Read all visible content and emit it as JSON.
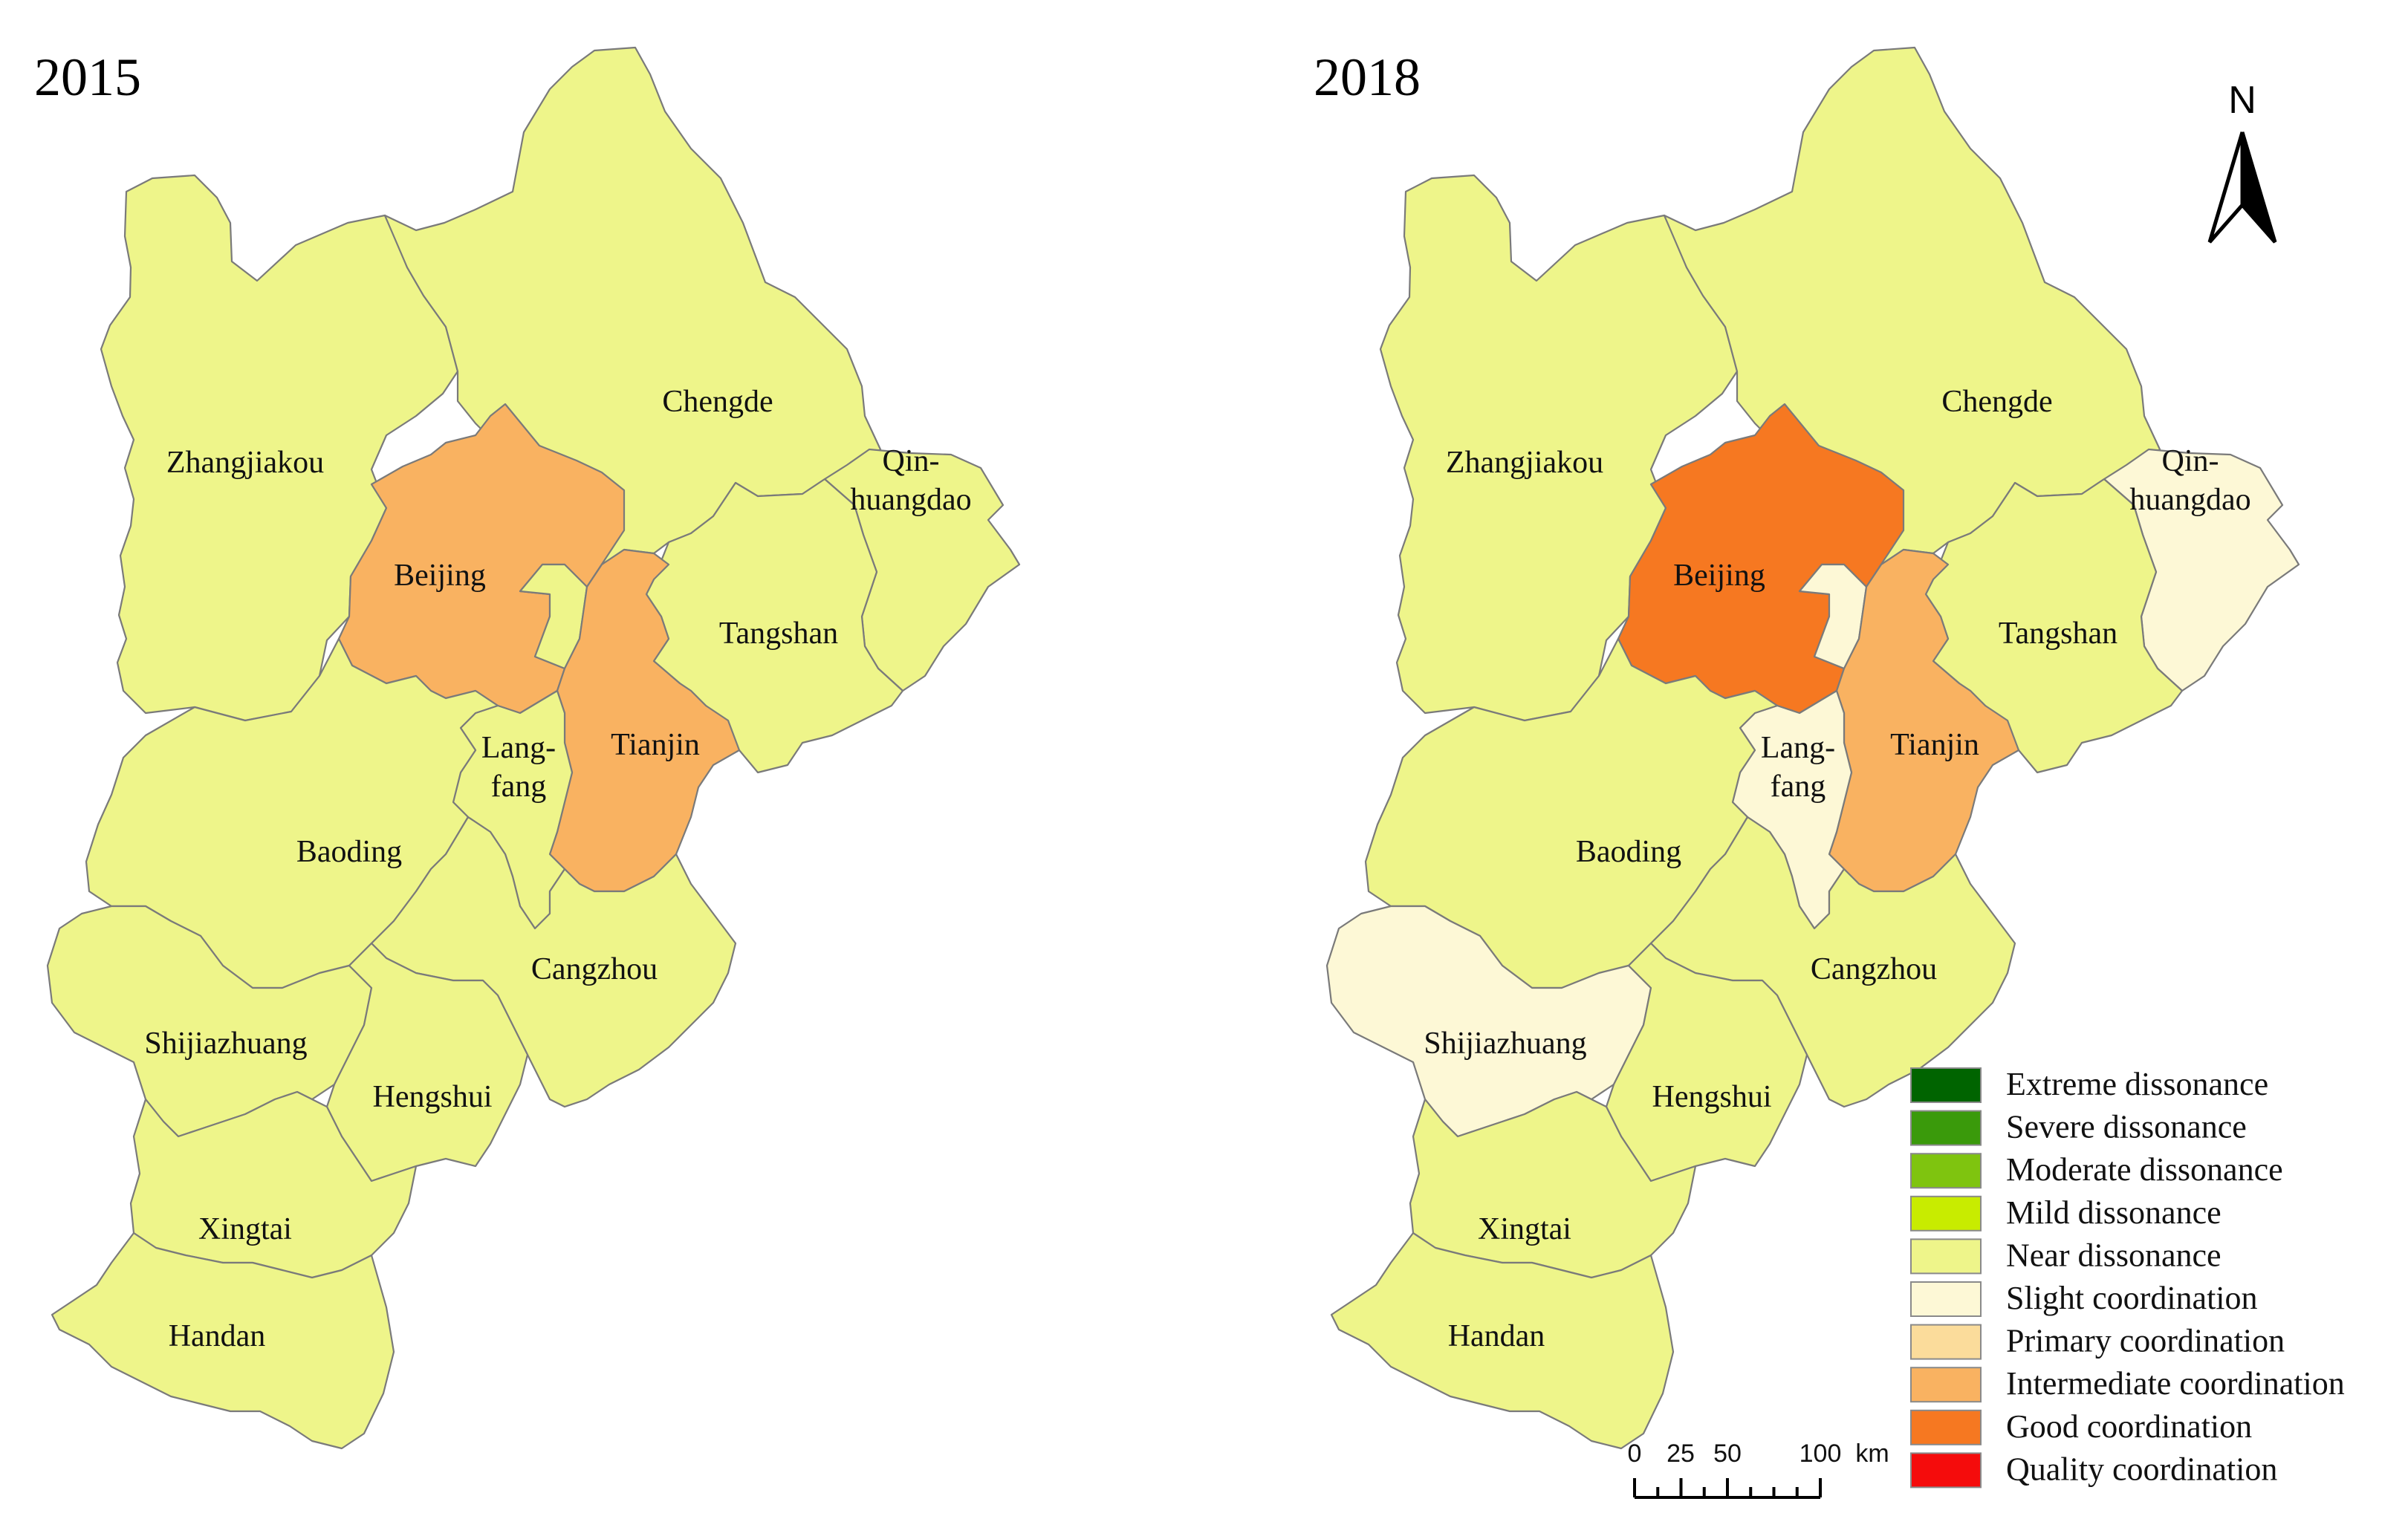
{
  "maps": [
    {
      "year": "2015",
      "regions": [
        {
          "id": "zhangjiakou",
          "label_lines": [
            "Zhangjiakou"
          ],
          "level": "Near dissonance"
        },
        {
          "id": "chengde",
          "label_lines": [
            "Chengde"
          ],
          "level": "Near dissonance"
        },
        {
          "id": "beijing",
          "label_lines": [
            "Beijing"
          ],
          "level": "Intermediate coordination"
        },
        {
          "id": "qinhuangdao",
          "label_lines": [
            "Qin-",
            "huangdao"
          ],
          "level": "Near dissonance"
        },
        {
          "id": "tangshan",
          "label_lines": [
            "Tangshan"
          ],
          "level": "Near dissonance"
        },
        {
          "id": "tianjin",
          "label_lines": [
            "Tianjin"
          ],
          "level": "Intermediate coordination"
        },
        {
          "id": "langfang",
          "label_lines": [
            "Lang-",
            "fang"
          ],
          "level": "Near dissonance"
        },
        {
          "id": "baoding",
          "label_lines": [
            "Baoding"
          ],
          "level": "Near dissonance"
        },
        {
          "id": "cangzhou",
          "label_lines": [
            "Cangzhou"
          ],
          "level": "Near dissonance"
        },
        {
          "id": "shijiazhuang",
          "label_lines": [
            "Shijiazhuang"
          ],
          "level": "Near dissonance"
        },
        {
          "id": "hengshui",
          "label_lines": [
            "Hengshui"
          ],
          "level": "Near dissonance"
        },
        {
          "id": "xingtai",
          "label_lines": [
            "Xingtai"
          ],
          "level": "Near dissonance"
        },
        {
          "id": "handan",
          "label_lines": [
            "Handan"
          ],
          "level": "Near dissonance"
        }
      ]
    },
    {
      "year": "2018",
      "regions": [
        {
          "id": "zhangjiakou",
          "label_lines": [
            "Zhangjiakou"
          ],
          "level": "Near dissonance"
        },
        {
          "id": "chengde",
          "label_lines": [
            "Chengde"
          ],
          "level": "Near dissonance"
        },
        {
          "id": "beijing",
          "label_lines": [
            "Beijing"
          ],
          "level": "Good coordination"
        },
        {
          "id": "qinhuangdao",
          "label_lines": [
            "Qin-",
            "huangdao"
          ],
          "level": "Slight coordination"
        },
        {
          "id": "tangshan",
          "label_lines": [
            "Tangshan"
          ],
          "level": "Near dissonance"
        },
        {
          "id": "tianjin",
          "label_lines": [
            "Tianjin"
          ],
          "level": "Intermediate coordination"
        },
        {
          "id": "langfang",
          "label_lines": [
            "Lang-",
            "fang"
          ],
          "level": "Slight coordination"
        },
        {
          "id": "baoding",
          "label_lines": [
            "Baoding"
          ],
          "level": "Near dissonance"
        },
        {
          "id": "cangzhou",
          "label_lines": [
            "Cangzhou"
          ],
          "level": "Near dissonance"
        },
        {
          "id": "shijiazhuang",
          "label_lines": [
            "Shijiazhuang"
          ],
          "level": "Slight coordination"
        },
        {
          "id": "hengshui",
          "label_lines": [
            "Hengshui"
          ],
          "level": "Near dissonance"
        },
        {
          "id": "xingtai",
          "label_lines": [
            "Xingtai"
          ],
          "level": "Near dissonance"
        },
        {
          "id": "handan",
          "label_lines": [
            "Handan"
          ],
          "level": "Near dissonance"
        }
      ]
    }
  ],
  "legend": [
    {
      "label": "Extreme dissonance",
      "color": "#006400"
    },
    {
      "label": "Severe dissonance",
      "color": "#3a9a0b"
    },
    {
      "label": "Moderate dissonance",
      "color": "#7fc40f"
    },
    {
      "label": "Mild dissonance",
      "color": "#c8ec00"
    },
    {
      "label": "Near dissonance",
      "color": "#eef58a"
    },
    {
      "label": "Slight coordination",
      "color": "#fdf8d6"
    },
    {
      "label": "Primary coordination",
      "color": "#fbdc9b"
    },
    {
      "label": "Intermediate coordination",
      "color": "#f9b261"
    },
    {
      "label": "Good coordination",
      "color": "#f67821"
    },
    {
      "label": "Quality coordination",
      "color": "#f50c0c"
    }
  ],
  "scale_bar": {
    "ticks": [
      "0",
      "25",
      "50",
      "100"
    ],
    "unit": "km"
  },
  "north_label": "N"
}
